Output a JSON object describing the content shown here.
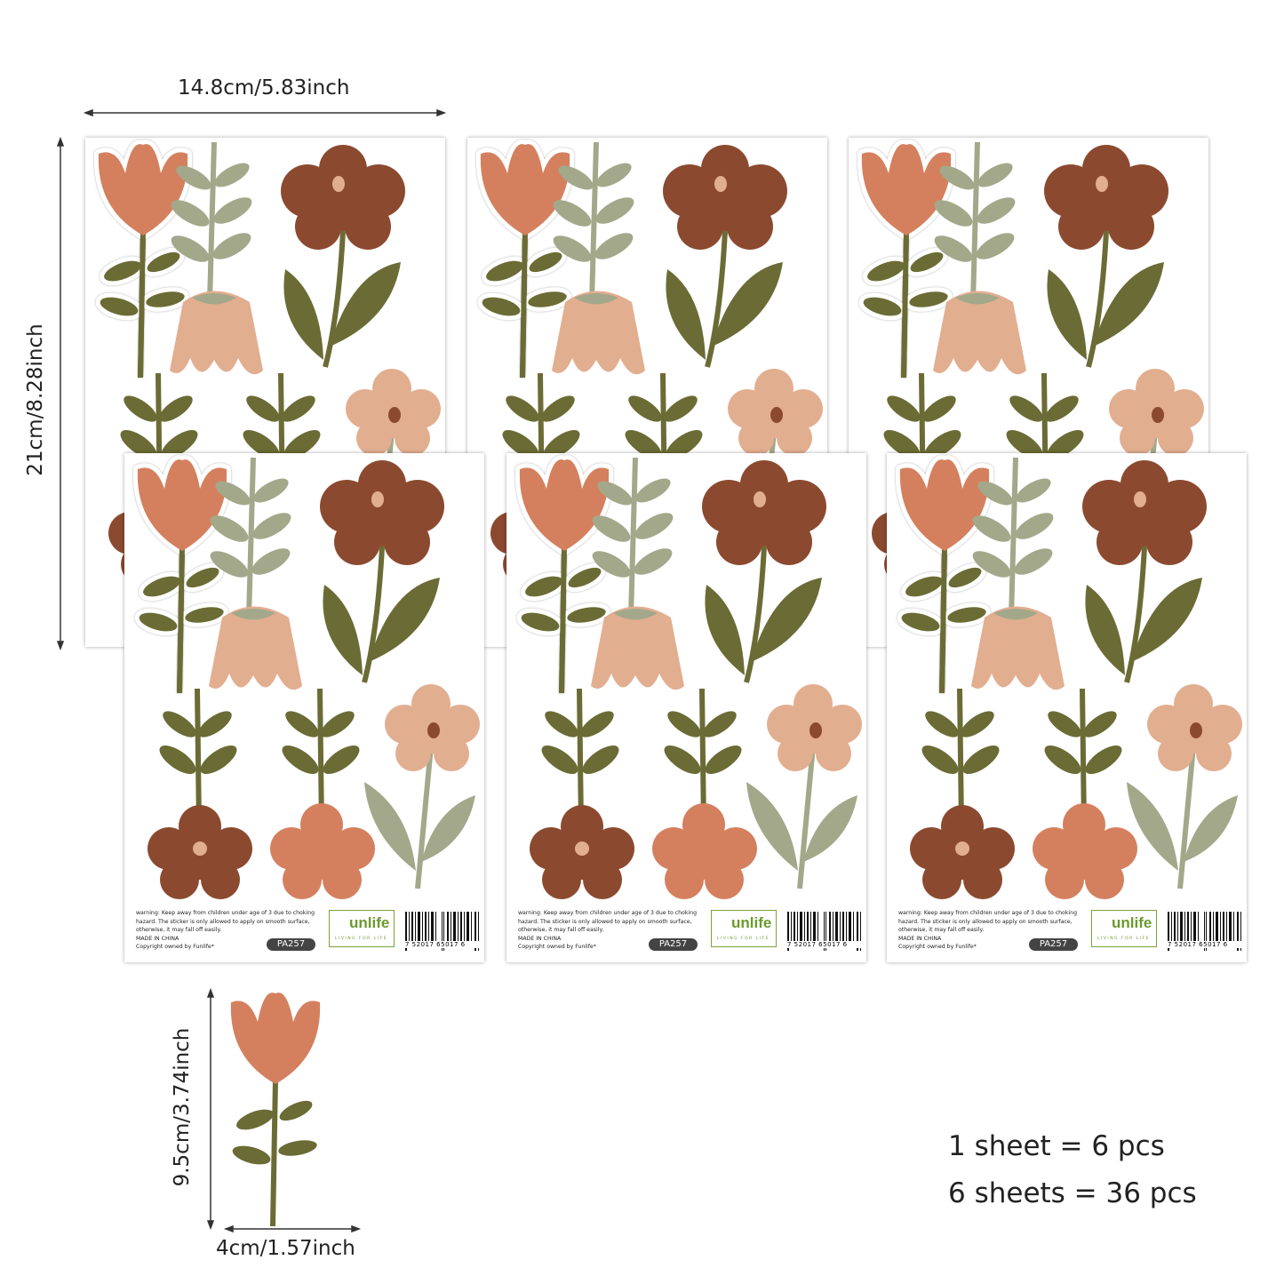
{
  "dimensions": {
    "sheet_width": "14.8cm/5.83inch",
    "sheet_height": "21cm/8.28inch",
    "sticker_height": "9.5cm/3.74inch",
    "sticker_width": "4cm/1.57inch"
  },
  "sheet_footer": {
    "warning_line1": "warning: Keep away from children under age of 3 due to choking",
    "warning_line2": "hazard. The sticker is only allowed to apply on smooth surface,",
    "warning_line3": "otherwise, it may fall off easily.",
    "made_in": "MADE IN CHINA",
    "copyright": "Copyright owned by Funlife*",
    "product_code": "PA257",
    "brand": "unlife",
    "brand_tagline": "LIVING FOR LIFE",
    "barcode_number": "7  52017  65017  6"
  },
  "quantity": {
    "line1": "1 sheet = 6 pcs",
    "line2": "6 sheets = 36 pcs"
  },
  "colors": {
    "coral": "#d4805f",
    "olive": "#6b6b35",
    "sage": "#a3a88a",
    "peach": "#e2ae90",
    "brown": "#8b4a30"
  }
}
